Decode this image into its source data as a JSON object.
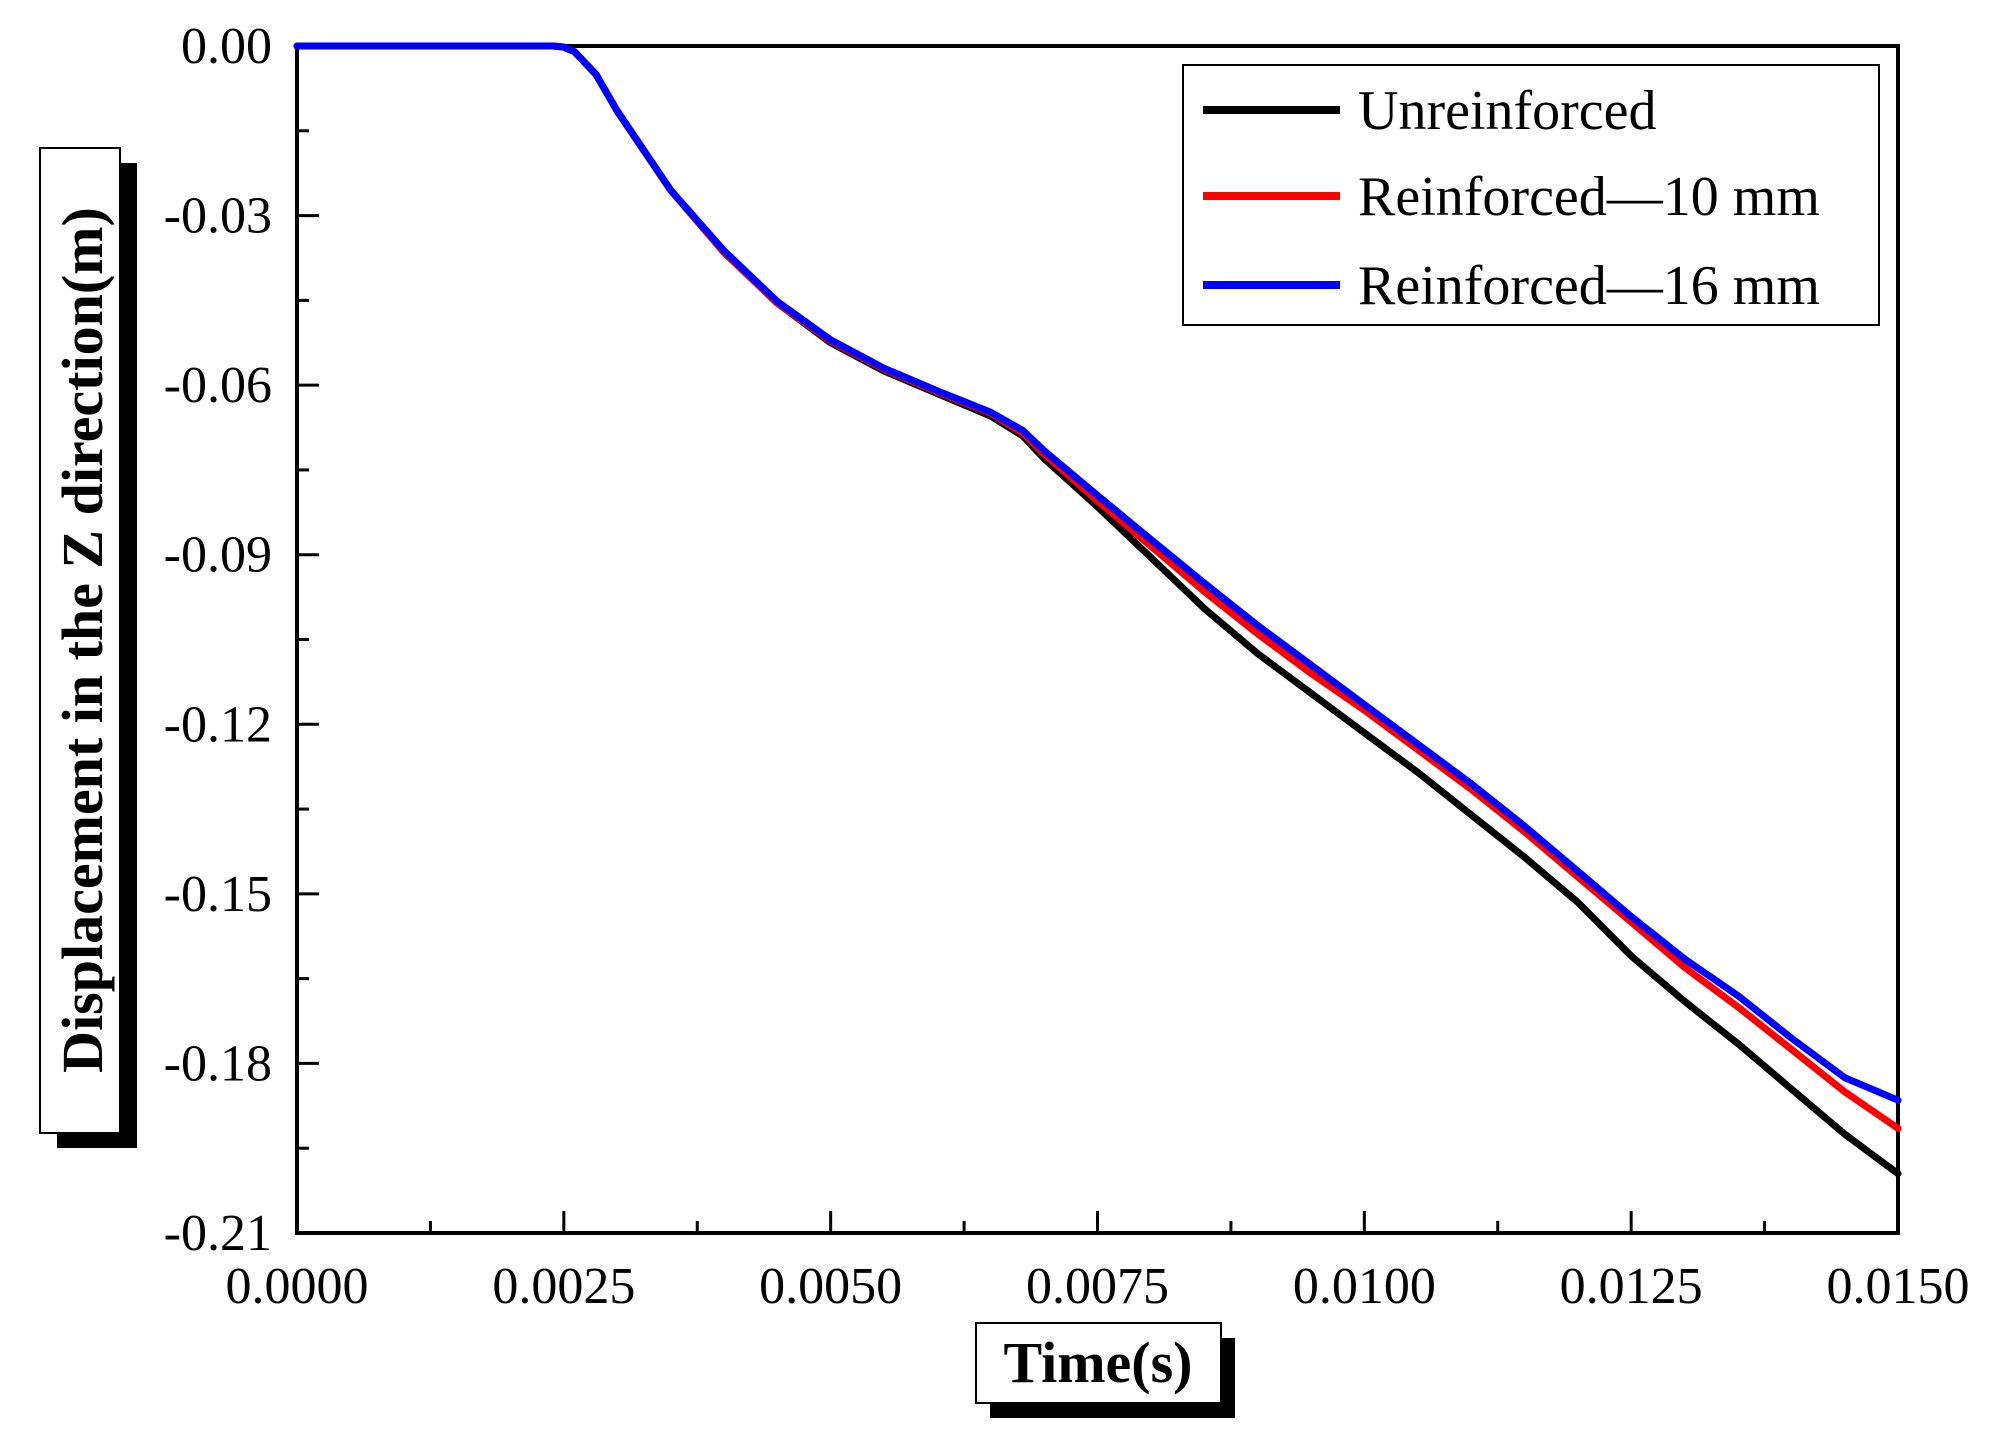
{
  "chart_data": {
    "type": "line",
    "title": "",
    "xlabel": "Time(s)",
    "ylabel": "Displacement in the Z direction(m)",
    "xlim": [
      0.0,
      0.015
    ],
    "ylim": [
      -0.21,
      0.0
    ],
    "xticks": [
      0.0,
      0.0025,
      0.005,
      0.0075,
      0.01,
      0.0125,
      0.015
    ],
    "xtick_labels": [
      "0.0000",
      "0.0025",
      "0.0050",
      "0.0075",
      "0.0100",
      "0.0125",
      "0.0150"
    ],
    "yticks": [
      0.0,
      -0.03,
      -0.06,
      -0.09,
      -0.12,
      -0.15,
      -0.18,
      -0.21
    ],
    "ytick_labels": [
      "0.00",
      "-0.03",
      "-0.06",
      "-0.09",
      "-0.12",
      "-0.15",
      "-0.18",
      "-0.21"
    ],
    "grid": false,
    "legend_position": "top-right",
    "series": [
      {
        "name": "Unreinforced",
        "color": "#000000",
        "points": [
          [
            0.0,
            0.0
          ],
          [
            0.0024,
            0.0
          ],
          [
            0.0025,
            -0.0002
          ],
          [
            0.0026,
            -0.001
          ],
          [
            0.0028,
            -0.005
          ],
          [
            0.003,
            -0.0115
          ],
          [
            0.0035,
            -0.0255
          ],
          [
            0.004,
            -0.0365
          ],
          [
            0.0045,
            -0.0455
          ],
          [
            0.005,
            -0.0525
          ],
          [
            0.0055,
            -0.0575
          ],
          [
            0.006,
            -0.0615
          ],
          [
            0.0065,
            -0.0655
          ],
          [
            0.0068,
            -0.069
          ],
          [
            0.007,
            -0.073
          ],
          [
            0.0075,
            -0.0815
          ],
          [
            0.008,
            -0.0905
          ],
          [
            0.0085,
            -0.0995
          ],
          [
            0.009,
            -0.1075
          ],
          [
            0.0095,
            -0.1145
          ],
          [
            0.01,
            -0.1215
          ],
          [
            0.0105,
            -0.1285
          ],
          [
            0.011,
            -0.136
          ],
          [
            0.0115,
            -0.1435
          ],
          [
            0.012,
            -0.1515
          ],
          [
            0.0125,
            -0.161
          ],
          [
            0.013,
            -0.169
          ],
          [
            0.0135,
            -0.1765
          ],
          [
            0.014,
            -0.1845
          ],
          [
            0.0145,
            -0.1925
          ],
          [
            0.015,
            -0.1995
          ]
        ]
      },
      {
        "name": "Reinforced—10 mm",
        "color": "#ff0000",
        "points": [
          [
            0.0,
            0.0
          ],
          [
            0.0024,
            0.0
          ],
          [
            0.0025,
            -0.0002
          ],
          [
            0.0026,
            -0.001
          ],
          [
            0.0028,
            -0.005
          ],
          [
            0.003,
            -0.0115
          ],
          [
            0.0035,
            -0.0255
          ],
          [
            0.004,
            -0.0365
          ],
          [
            0.0045,
            -0.0455
          ],
          [
            0.005,
            -0.0522
          ],
          [
            0.0055,
            -0.0572
          ],
          [
            0.006,
            -0.0612
          ],
          [
            0.0065,
            -0.065
          ],
          [
            0.0068,
            -0.0685
          ],
          [
            0.007,
            -0.0722
          ],
          [
            0.0075,
            -0.0805
          ],
          [
            0.008,
            -0.0885
          ],
          [
            0.0085,
            -0.0965
          ],
          [
            0.009,
            -0.104
          ],
          [
            0.0095,
            -0.111
          ],
          [
            0.01,
            -0.1175
          ],
          [
            0.0105,
            -0.1245
          ],
          [
            0.011,
            -0.1315
          ],
          [
            0.0115,
            -0.139
          ],
          [
            0.012,
            -0.147
          ],
          [
            0.0125,
            -0.155
          ],
          [
            0.013,
            -0.163
          ],
          [
            0.0135,
            -0.17
          ],
          [
            0.014,
            -0.1775
          ],
          [
            0.0145,
            -0.185
          ],
          [
            0.015,
            -0.1915
          ]
        ]
      },
      {
        "name": "Reinforced—16 mm",
        "color": "#0000ff",
        "points": [
          [
            0.0,
            0.0
          ],
          [
            0.0024,
            0.0
          ],
          [
            0.0025,
            -0.0002
          ],
          [
            0.0026,
            -0.001
          ],
          [
            0.0028,
            -0.005
          ],
          [
            0.003,
            -0.0115
          ],
          [
            0.0035,
            -0.0255
          ],
          [
            0.004,
            -0.0362
          ],
          [
            0.0045,
            -0.0452
          ],
          [
            0.005,
            -0.052
          ],
          [
            0.0055,
            -0.057
          ],
          [
            0.006,
            -0.061
          ],
          [
            0.0065,
            -0.0648
          ],
          [
            0.0068,
            -0.068
          ],
          [
            0.007,
            -0.0716
          ],
          [
            0.0075,
            -0.0795
          ],
          [
            0.008,
            -0.0873
          ],
          [
            0.0085,
            -0.095
          ],
          [
            0.009,
            -0.1025
          ],
          [
            0.0095,
            -0.1095
          ],
          [
            0.01,
            -0.1165
          ],
          [
            0.0105,
            -0.1235
          ],
          [
            0.011,
            -0.1305
          ],
          [
            0.0115,
            -0.138
          ],
          [
            0.012,
            -0.146
          ],
          [
            0.0125,
            -0.154
          ],
          [
            0.013,
            -0.1615
          ],
          [
            0.0135,
            -0.168
          ],
          [
            0.014,
            -0.1755
          ],
          [
            0.0145,
            -0.1825
          ],
          [
            0.015,
            -0.1865
          ]
        ]
      }
    ]
  }
}
